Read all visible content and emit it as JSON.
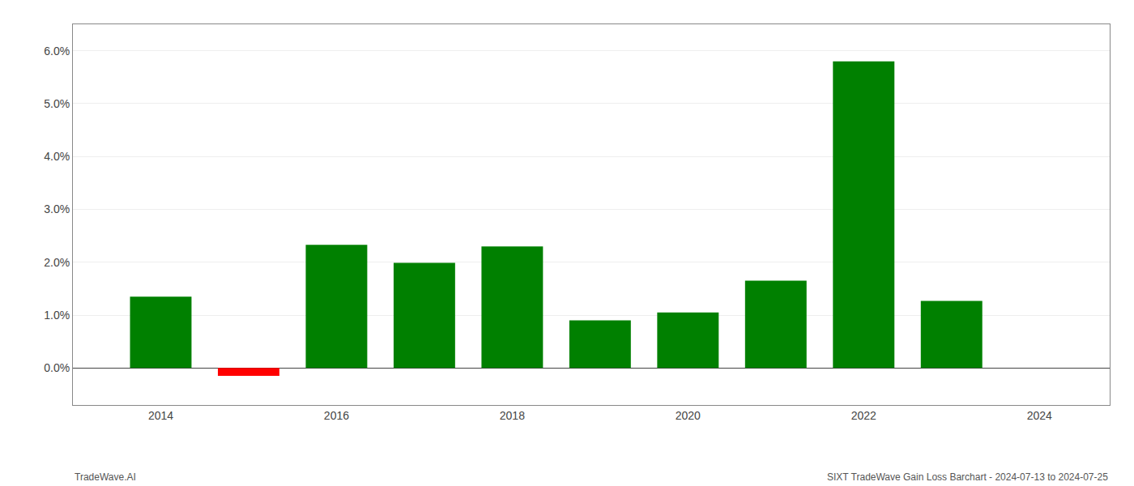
{
  "chart_data": {
    "type": "bar",
    "x": [
      2014,
      2015,
      2016,
      2017,
      2018,
      2019,
      2020,
      2021,
      2022,
      2023
    ],
    "values": [
      0.0135,
      -0.0015,
      0.0233,
      0.0199,
      0.023,
      0.009,
      0.0105,
      0.0165,
      0.058,
      0.0127
    ],
    "colors": [
      "#008000",
      "#ff0000",
      "#008000",
      "#008000",
      "#008000",
      "#008000",
      "#008000",
      "#008000",
      "#008000",
      "#008000"
    ],
    "xlim": [
      2013.0,
      2024.8
    ],
    "xticks": [
      2014,
      2016,
      2018,
      2020,
      2022,
      2024
    ],
    "ylim": [
      -0.007,
      0.065
    ],
    "yticks": [
      {
        "value": 0.0,
        "label": "0.0%"
      },
      {
        "value": 0.01,
        "label": "1.0%"
      },
      {
        "value": 0.02,
        "label": "2.0%"
      },
      {
        "value": 0.03,
        "label": "3.0%"
      },
      {
        "value": 0.04,
        "label": "4.0%"
      },
      {
        "value": 0.05,
        "label": "5.0%"
      },
      {
        "value": 0.06,
        "label": "6.0%"
      }
    ],
    "grid": "y",
    "annotations": [
      "TradeWave.AI",
      "SIXT TradeWave Gain Loss Barchart - 2024-07-13 to 2024-07-25"
    ]
  }
}
